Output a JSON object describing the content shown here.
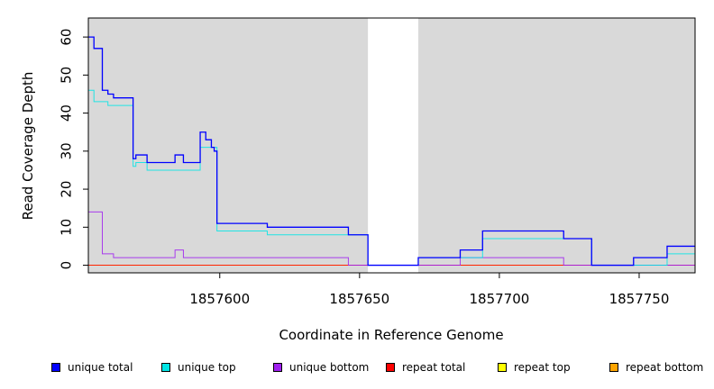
{
  "chart_data": {
    "type": "line",
    "xlabel": "Coordinate in Reference Genome",
    "ylabel": "Read Coverage Depth",
    "xlim": [
      1857553,
      1857770
    ],
    "ylim": [
      -2,
      65
    ],
    "x_ticks": [
      1857600,
      1857650,
      1857700,
      1857750
    ],
    "x_tick_labels": [
      "1857600",
      "1857650",
      "1857700",
      "1857750"
    ],
    "y_ticks": [
      0,
      10,
      20,
      30,
      40,
      50,
      60
    ],
    "y_tick_labels": [
      "0",
      "10",
      "20",
      "30",
      "40",
      "50",
      "60"
    ],
    "shaded_regions": [
      [
        1857553,
        1857653
      ],
      [
        1857671,
        1857770
      ]
    ],
    "background_color": "#d9d9d9",
    "grid": false,
    "legend_position": "bottom",
    "series": [
      {
        "name": "unique total",
        "color": "#0000ff",
        "points": [
          [
            1857553,
            60
          ],
          [
            1857555,
            57
          ],
          [
            1857558,
            46
          ],
          [
            1857560,
            45
          ],
          [
            1857562,
            44
          ],
          [
            1857569,
            28
          ],
          [
            1857570,
            29
          ],
          [
            1857574,
            27
          ],
          [
            1857584,
            29
          ],
          [
            1857587,
            27
          ],
          [
            1857593,
            35
          ],
          [
            1857595,
            33
          ],
          [
            1857597,
            31
          ],
          [
            1857598,
            30
          ],
          [
            1857599,
            11
          ],
          [
            1857617,
            10
          ],
          [
            1857646,
            8
          ],
          [
            1857653,
            0
          ],
          [
            1857671,
            2
          ],
          [
            1857686,
            4
          ],
          [
            1857694,
            9
          ],
          [
            1857723,
            7
          ],
          [
            1857733,
            0
          ],
          [
            1857748,
            2
          ],
          [
            1857760,
            5
          ],
          [
            1857770,
            5
          ]
        ]
      },
      {
        "name": "unique top",
        "color": "#00e5e5",
        "points": [
          [
            1857553,
            46
          ],
          [
            1857555,
            43
          ],
          [
            1857560,
            42
          ],
          [
            1857569,
            26
          ],
          [
            1857570,
            27
          ],
          [
            1857574,
            25
          ],
          [
            1857593,
            31
          ],
          [
            1857599,
            9
          ],
          [
            1857617,
            8
          ],
          [
            1857646,
            8
          ],
          [
            1857653,
            0
          ],
          [
            1857671,
            2
          ],
          [
            1857694,
            7
          ],
          [
            1857723,
            7
          ],
          [
            1857733,
            0
          ],
          [
            1857760,
            3
          ],
          [
            1857770,
            3
          ]
        ]
      },
      {
        "name": "unique bottom",
        "color": "#a020f0",
        "points": [
          [
            1857553,
            14
          ],
          [
            1857558,
            3
          ],
          [
            1857562,
            2
          ],
          [
            1857584,
            4
          ],
          [
            1857587,
            2
          ],
          [
            1857646,
            0
          ],
          [
            1857686,
            2
          ],
          [
            1857723,
            0
          ],
          [
            1857770,
            0
          ]
        ]
      },
      {
        "name": "repeat total",
        "color": "#ff0000",
        "points": [
          [
            1857553,
            0
          ],
          [
            1857770,
            0
          ]
        ]
      },
      {
        "name": "repeat top",
        "color": "#ffff00",
        "points": [
          [
            1857553,
            0
          ],
          [
            1857770,
            0
          ]
        ]
      },
      {
        "name": "repeat bottom",
        "color": "#ffa500",
        "points": [
          [
            1857553,
            0
          ],
          [
            1857770,
            0
          ]
        ]
      }
    ]
  }
}
